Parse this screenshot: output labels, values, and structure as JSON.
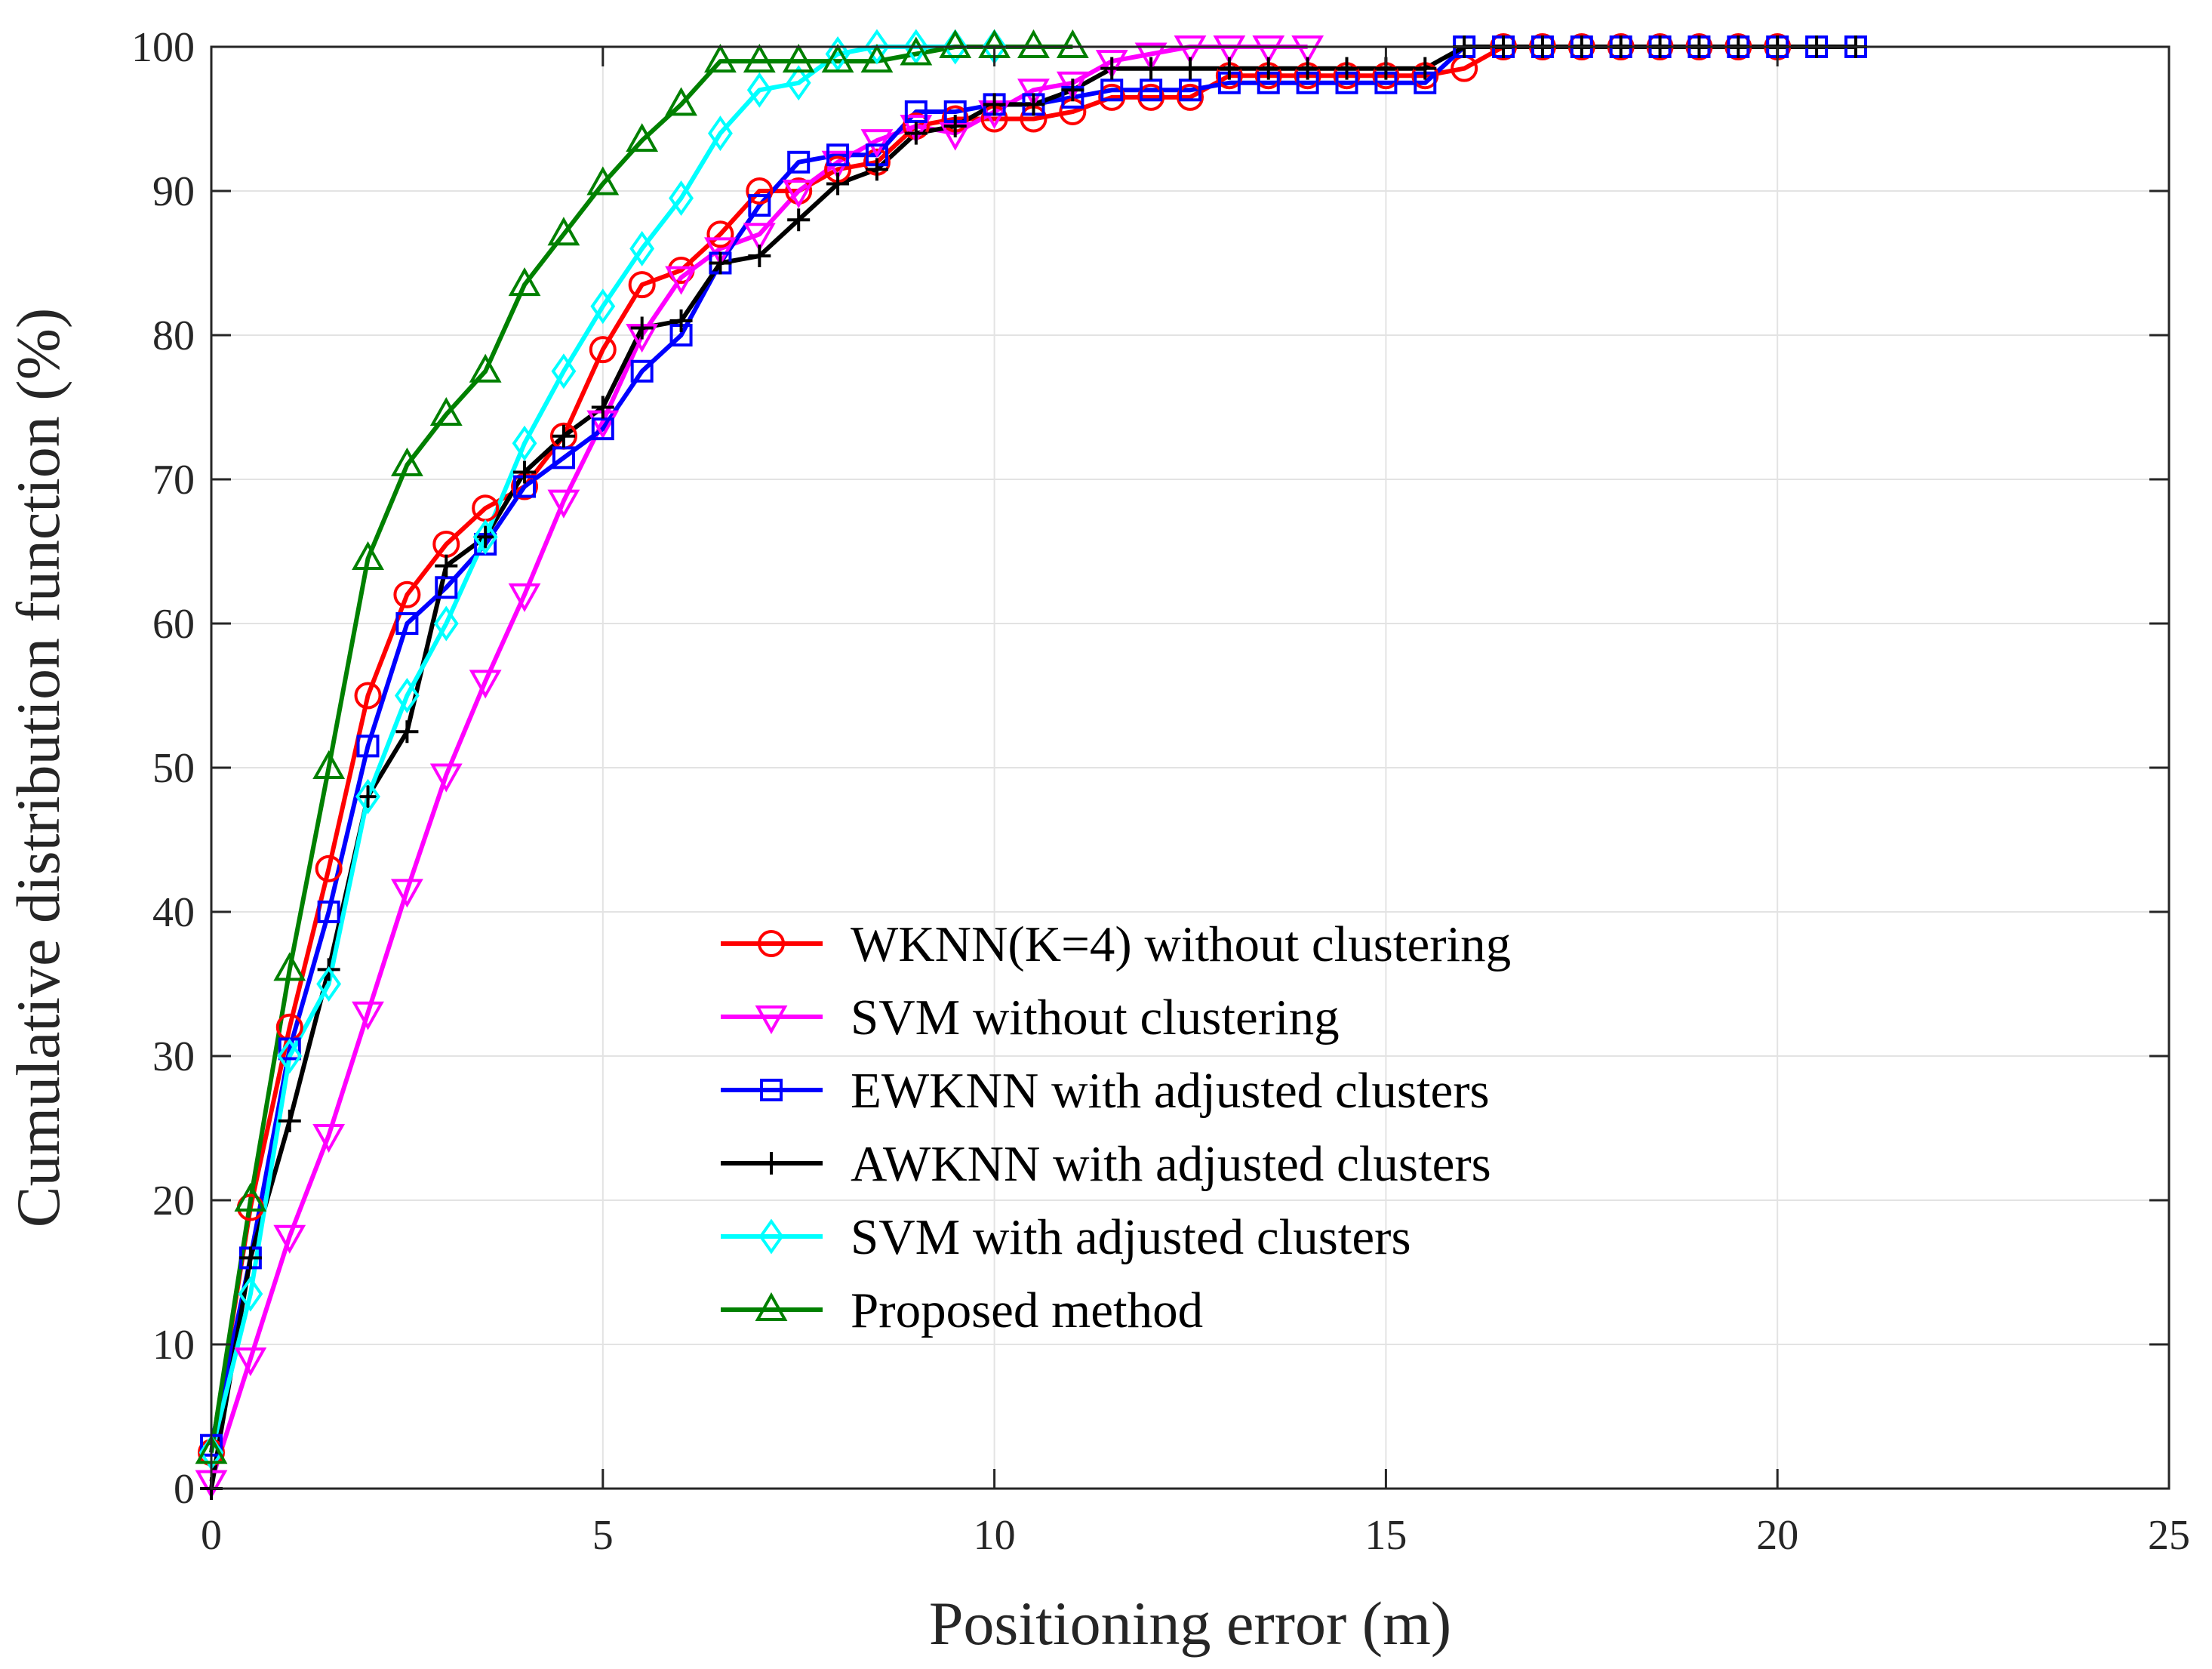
{
  "chart_data": {
    "type": "line",
    "title": "",
    "xlabel": "Positioning error (m)",
    "ylabel": "Cumulative distribution function (%)",
    "xlim": [
      0,
      25
    ],
    "ylim": [
      0,
      100
    ],
    "xticks": [
      "0",
      "5",
      "10",
      "15",
      "20",
      "25"
    ],
    "yticks": [
      "0",
      "10",
      "20",
      "30",
      "40",
      "50",
      "60",
      "70",
      "80",
      "90",
      "100"
    ],
    "grid": true,
    "legend_position": "center-right",
    "series": [
      {
        "name": "WKNN(K=4) without clustering",
        "color": "#ff0000",
        "marker": "circle",
        "x": [
          0,
          0.5,
          1,
          1.5,
          2,
          2.5,
          3,
          3.5,
          4,
          4.5,
          5,
          5.5,
          6,
          6.5,
          7,
          7.5,
          8,
          8.5,
          9,
          9.5,
          10,
          10.5,
          11,
          11.5,
          12,
          12.5,
          13,
          13.5,
          14,
          14.5,
          15,
          15.5,
          16,
          16.5,
          17,
          17.5,
          18,
          18.5,
          19,
          19.5,
          20
        ],
        "y": [
          2.5,
          19.5,
          32,
          43,
          55,
          62,
          65.5,
          68,
          69.5,
          73,
          79,
          83.5,
          84.5,
          87,
          90,
          90,
          91.5,
          92,
          94.5,
          95,
          95,
          95,
          95.5,
          96.5,
          96.5,
          96.5,
          98,
          98,
          98,
          98,
          98,
          98,
          98.5,
          100,
          100,
          100,
          100,
          100,
          100,
          100,
          100
        ]
      },
      {
        "name": "SVM without clustering",
        "color": "#ff00ff",
        "marker": "triangle-down",
        "x": [
          0,
          0.5,
          1,
          1.5,
          2,
          2.5,
          3,
          3.5,
          4,
          4.5,
          5,
          5.5,
          6,
          6.5,
          7,
          7.5,
          8,
          8.5,
          9,
          9.5,
          10,
          10.5,
          11,
          11.5,
          12,
          12.5,
          13,
          13.5,
          14
        ],
        "y": [
          0.5,
          9,
          17.5,
          24.5,
          33,
          41.5,
          49.5,
          56,
          62,
          68.5,
          74,
          80,
          84,
          86,
          87,
          90,
          92,
          93.5,
          94.5,
          94,
          95.5,
          97,
          97.5,
          99,
          99.5,
          100,
          100,
          100,
          100
        ]
      },
      {
        "name": "EWKNN with adjusted clusters",
        "color": "#0000ff",
        "marker": "square",
        "x": [
          0,
          0.5,
          1,
          1.5,
          2,
          2.5,
          3,
          3.5,
          4,
          4.5,
          5,
          5.5,
          6,
          6.5,
          7,
          7.5,
          8,
          8.5,
          9,
          9.5,
          10,
          10.5,
          11,
          11.5,
          12,
          12.5,
          13,
          13.5,
          14,
          14.5,
          15,
          15.5,
          16,
          16.5,
          17,
          17.5,
          18,
          18.5,
          19,
          19.5,
          20,
          20.5,
          21
        ],
        "y": [
          3,
          16,
          30.5,
          40,
          51.5,
          60,
          62.5,
          65.5,
          69.5,
          71.5,
          73.5,
          77.5,
          80,
          85,
          89,
          92,
          92.5,
          92.5,
          95.5,
          95.5,
          96,
          96,
          96.5,
          97,
          97,
          97,
          97.5,
          97.5,
          97.5,
          97.5,
          97.5,
          97.5,
          100,
          100,
          100,
          100,
          100,
          100,
          100,
          100,
          100,
          100,
          100
        ]
      },
      {
        "name": "AWKNN with adjusted clusters",
        "color": "#000000",
        "marker": "plus",
        "x": [
          0,
          0.5,
          1,
          1.5,
          2,
          2.5,
          3,
          3.5,
          4,
          4.5,
          5,
          5.5,
          6,
          6.5,
          7,
          7.5,
          8,
          8.5,
          9,
          9.5,
          10,
          10.5,
          11,
          11.5,
          12,
          12.5,
          13,
          13.5,
          14,
          14.5,
          15,
          15.5,
          16,
          16.5,
          17,
          17.5,
          18,
          18.5,
          19,
          19.5,
          20,
          20.5,
          21
        ],
        "y": [
          0,
          16,
          25.5,
          36,
          48,
          52.5,
          64,
          66,
          70.5,
          73,
          75,
          80.5,
          81,
          85,
          85.5,
          88,
          90.5,
          91.5,
          94,
          94.5,
          96,
          96,
          97,
          98.5,
          98.5,
          98.5,
          98.5,
          98.5,
          98.5,
          98.5,
          98.5,
          98.5,
          100,
          100,
          100,
          100,
          100,
          100,
          100,
          100,
          100,
          100,
          100
        ]
      },
      {
        "name": "SVM with adjusted clusters",
        "color": "#00ffff",
        "marker": "diamond",
        "x": [
          0,
          0.5,
          1,
          1.5,
          2,
          2.5,
          3,
          3.5,
          4,
          4.5,
          5,
          5.5,
          6,
          6.5,
          7,
          7.5,
          8,
          8.5,
          9,
          9.5,
          10
        ],
        "y": [
          2.5,
          13.5,
          30,
          35,
          48,
          55,
          60,
          66,
          72.5,
          77.5,
          82,
          86,
          89.5,
          94,
          97,
          97.5,
          99.5,
          100,
          100,
          100,
          100
        ]
      },
      {
        "name": "Proposed method",
        "color": "#008000",
        "marker": "triangle-up",
        "x": [
          0,
          0.5,
          1,
          1.5,
          2,
          2.5,
          3,
          3.5,
          4,
          4.5,
          5,
          5.5,
          6,
          6.5,
          7,
          7.5,
          8,
          8.5,
          9,
          9.5,
          10,
          10.5,
          11
        ],
        "y": [
          2.5,
          20,
          36,
          50,
          64.5,
          71,
          74.5,
          77.5,
          83.5,
          87,
          90.5,
          93.5,
          96,
          99,
          99,
          99,
          99,
          99,
          99.5,
          100,
          100,
          100,
          100
        ]
      }
    ]
  }
}
